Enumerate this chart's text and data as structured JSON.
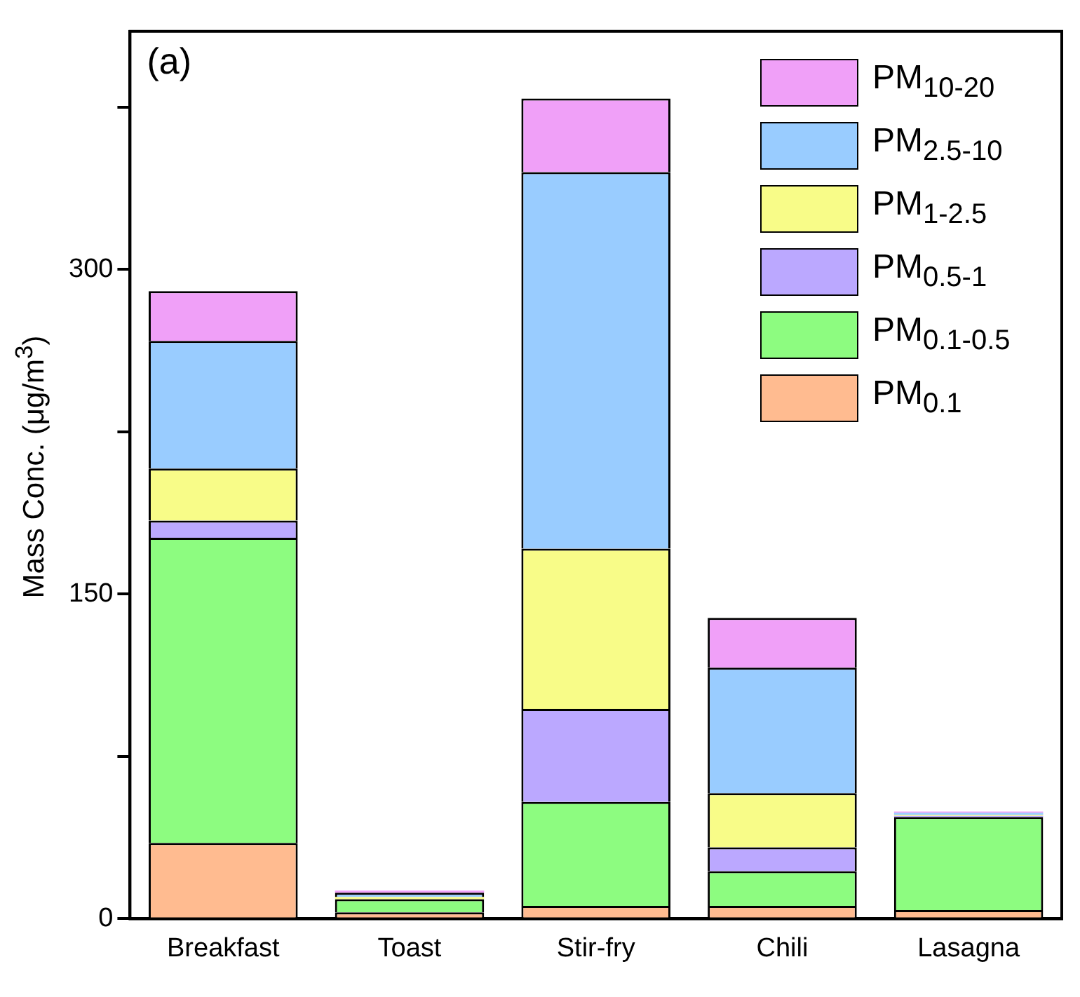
{
  "chart_data": {
    "type": "bar",
    "stacked": true,
    "ylabel": "Mass Conc. (μg/m$^{3}$)",
    "annotations": [
      "(a)"
    ],
    "categories": [
      "Breakfast",
      "Toast",
      "Stir-fry",
      "Chili",
      "Lasagna"
    ],
    "series": [
      {
        "name": "PM$_{0.1}$",
        "color": "#ffbb90",
        "values": [
          35,
          3,
          6,
          6,
          4
        ]
      },
      {
        "name": "PM$_{0.1-0.5}$",
        "color": "#8dfc80",
        "values": [
          141,
          6,
          48,
          16,
          43
        ]
      },
      {
        "name": "PM$_{0.5-1}$",
        "color": "#bba8ff",
        "values": [
          8,
          null,
          43,
          11,
          0.5
        ]
      },
      {
        "name": "PM$_{1-2.5}$",
        "color": "#f8fc88",
        "values": [
          24,
          1,
          74,
          25,
          0.5
        ]
      },
      {
        "name": "PM$_{2.5-10}$",
        "color": "#99ccff",
        "values": [
          59,
          2,
          174,
          58,
          1
        ]
      },
      {
        "name": "PM$_{10-20}$",
        "color": "#f0a0f8",
        "values": [
          23,
          1,
          34,
          23,
          0.5
        ]
      }
    ],
    "ylim": [
      0,
      410
    ],
    "yticks": [
      0,
      {
        "value": 75,
        "label": null
      },
      150,
      {
        "value": 225,
        "label": null
      },
      300,
      {
        "value": 375,
        "label": null
      }
    ],
    "grid": false,
    "legend": "top right"
  }
}
